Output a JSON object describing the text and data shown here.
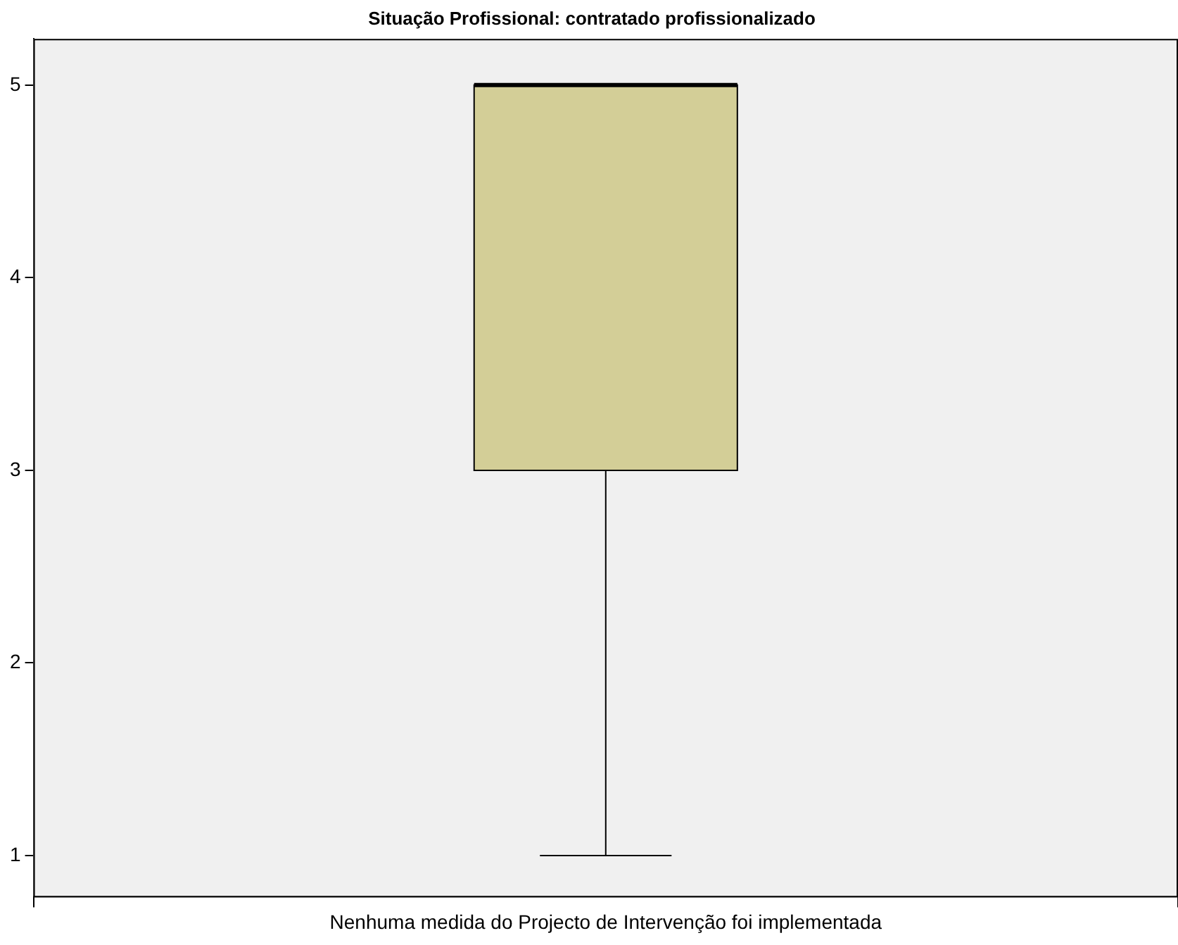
{
  "chart_data": {
    "type": "box",
    "title": "Situação Profissional: contratado profissionalizado",
    "categories": [
      "Nenhuma medida do Projecto de Intervenção foi implementada"
    ],
    "color": "#d3ce97",
    "boxes": [
      {
        "low": 1,
        "q1": 3,
        "median": 5,
        "q3": 5,
        "high": 5
      }
    ],
    "ylim": [
      0.79,
      5.24
    ],
    "yticks": [
      1,
      2,
      3,
      4,
      5
    ]
  }
}
